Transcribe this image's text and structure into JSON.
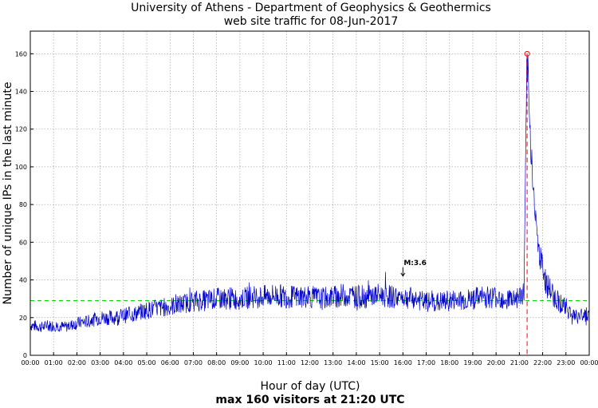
{
  "chart_data": {
    "type": "line",
    "title": "University of Athens - Department of Geophysics & Geothermics",
    "subtitle": "web site traffic for 08-Jun-2017",
    "xlabel": "Hour of day (UTC)",
    "ylabel": "Number of unique IPs in the last minute",
    "note": "max 160 visitors at 21:20 UTC",
    "x_ticks": [
      "00:00",
      "01:00",
      "02:00",
      "03:00",
      "04:00",
      "05:00",
      "06:00",
      "07:00",
      "08:00",
      "09:00",
      "10:00",
      "11:00",
      "12:00",
      "13:00",
      "14:00",
      "15:00",
      "16:00",
      "17:00",
      "18:00",
      "19:00",
      "20:00",
      "21:00",
      "22:00",
      "23:00",
      "00:00"
    ],
    "y_ticks": [
      "0",
      "20",
      "40",
      "60",
      "80",
      "100",
      "120",
      "140",
      "160"
    ],
    "xlim": [
      0,
      24
    ],
    "ylim": [
      0,
      172
    ],
    "grid": true,
    "mean_line": {
      "y": 29,
      "color": "#00dd00"
    },
    "peak": {
      "time": "21:20",
      "x": 21.333,
      "y": 160,
      "color": "#ff0000"
    },
    "annotation": {
      "text": "M:3.6",
      "x": 16.0,
      "y": 42
    },
    "series": [
      {
        "color": "#0000cc",
        "x": [
          0,
          0.5,
          1,
          1.5,
          2,
          2.5,
          3,
          3.5,
          4,
          4.5,
          5,
          5.5,
          6,
          6.5,
          7,
          7.5,
          8,
          8.5,
          9,
          9.5,
          10,
          10.5,
          11,
          11.5,
          12,
          12.5,
          13,
          13.5,
          14,
          14.5,
          15,
          15.5,
          16,
          16.5,
          17,
          17.5,
          18,
          18.5,
          19,
          19.5,
          20,
          20.5,
          21,
          21.2,
          21.33,
          21.45,
          21.6,
          21.75,
          21.9,
          22.1,
          22.3,
          22.5,
          22.75,
          23,
          23.25,
          23.5,
          23.75,
          24
        ],
        "y": [
          16,
          15,
          16,
          15,
          17,
          18,
          20,
          20,
          21,
          22,
          24,
          25,
          26,
          27,
          29,
          29,
          30,
          30,
          30,
          31,
          31,
          32,
          31,
          31,
          31,
          30,
          31,
          32,
          31,
          31,
          32,
          31,
          31,
          30,
          28,
          28,
          29,
          29,
          30,
          31,
          31,
          30,
          31,
          33,
          160,
          120,
          90,
          65,
          50,
          40,
          35,
          31,
          28,
          25,
          22,
          20,
          22,
          22
        ]
      }
    ]
  }
}
